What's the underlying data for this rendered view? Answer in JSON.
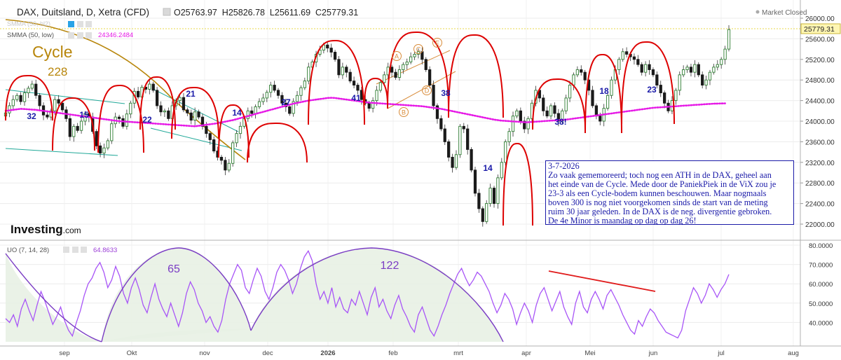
{
  "header": {
    "symbol": "DAX, Duitsland, D, Xetra (CFD)",
    "ohlc": "O25763.97  H25826.78  L25611.69  C25779.31",
    "status": "Market Closed"
  },
  "indicators": {
    "sma_hidden": "SMMA (50, hl2)",
    "sma_label": "SMMA (50, low)",
    "sma_value": "24346.2484",
    "uo_label": "UO (7, 14, 28)",
    "uo_value": "64.8633"
  },
  "watermark": {
    "brand": "Investing",
    "suffix": ".com"
  },
  "cycle": {
    "title": "Cycle",
    "days": "228"
  },
  "note_lines": [
    "3-7-2026",
    "Zo vaak gememoreerd; toch nog een ATH in de DAX, geheel aan",
    "het einde van de Cycle. Mede door de PaniekPiek in de ViX zou je",
    "23-3 als een Cycle-bodem kunnen beschouwen. Maar nogmaals",
    "boven 300 is nog niet voorgekomen sinds de start van de meting",
    "ruim 30 jaar geleden.  In de DAX is de neg. divergentie gebroken.",
    "De 4e Minor is maandag op dag op dag 26!"
  ],
  "colors": {
    "up": "#2e7d32",
    "down": "#1a1a1a",
    "cycle_arc": "#dd0000",
    "smma": "#e619e6",
    "cycle_line": "#b8860b",
    "channel": "#20a898",
    "oscillator": "#a855f7",
    "count_label": "#1a1aa8",
    "wave_label": "#d98c3a"
  },
  "chart_data": {
    "type": "candlestick",
    "x_ticks": [
      "sep",
      "Okt",
      "nov",
      "dec",
      "2026",
      "feb",
      "mrt",
      "apr",
      "Mei",
      "jun",
      "jul",
      "aug"
    ],
    "price_axis": {
      "ticks": [
        22000,
        22400,
        22800,
        23200,
        23600,
        24000,
        24400,
        24800,
        25200,
        25600,
        26000
      ],
      "ylim": [
        21850,
        26100
      ],
      "last_price": 25779.31
    },
    "closes": [
      24160,
      24300,
      24420,
      24500,
      24380,
      24550,
      24640,
      24720,
      24500,
      24300,
      24120,
      24080,
      24200,
      24420,
      24350,
      24220,
      24050,
      23700,
      23900,
      23820,
      24000,
      24150,
      24080,
      23800,
      23520,
      23380,
      23480,
      23620,
      23950,
      24080,
      24050,
      23900,
      24140,
      24350,
      24580,
      24470,
      24660,
      24620,
      24720,
      24600,
      24300,
      24180,
      24200,
      24050,
      24300,
      24400,
      24460,
      24220,
      24160,
      24020,
      24180,
      24080,
      23900,
      23760,
      23640,
      23420,
      23300,
      23240,
      23050,
      23180,
      23580,
      23760,
      23900,
      24050,
      24200,
      24150,
      24280,
      24380,
      24450,
      24560,
      24700,
      24600,
      24500,
      24350,
      24280,
      24150,
      24380,
      24500,
      24650,
      24780,
      25050,
      25150,
      25300,
      25380,
      25480,
      25420,
      25340,
      25200,
      24900,
      25050,
      24950,
      24780,
      24700,
      24600,
      24420,
      24350,
      24250,
      24400,
      24600,
      24750,
      24900,
      25050,
      24950,
      24850,
      25000,
      25100,
      25150,
      25250,
      25300,
      25350,
      25200,
      25000,
      24700,
      24300,
      24050,
      23850,
      23600,
      23300,
      23100,
      23350,
      23900,
      23850,
      23450,
      23050,
      22600,
      22300,
      22050,
      22400,
      22700,
      22400,
      22900,
      23200,
      23600,
      23800,
      24100,
      24200,
      24000,
      23850,
      24050,
      24350,
      24600,
      24450,
      24200,
      24100,
      24300,
      24150,
      24000,
      24200,
      24450,
      24700,
      24900,
      25000,
      24950,
      24800,
      24600,
      24300,
      24100,
      24000,
      24250,
      24500,
      24800,
      25000,
      25200,
      25350,
      25300,
      25250,
      25200,
      25100,
      24950,
      25100,
      25000,
      24900,
      24700,
      24550,
      24350,
      24200,
      24400,
      24600,
      24900,
      25000,
      25050,
      24950,
      25100,
      24900,
      24700,
      24800,
      24950,
      25050,
      25100,
      25200,
      25400,
      25779.31
    ],
    "smma": [
      24200,
      24210,
      24220,
      24230,
      24240,
      24235,
      24230,
      24225,
      24220,
      24210,
      24200,
      24190,
      24180,
      24170,
      24160,
      24150,
      24140,
      24130,
      24120,
      24110,
      24100,
      24090,
      24080,
      24070,
      24060,
      24050,
      24040,
      24030,
      24020,
      24010,
      24000,
      23995,
      23990,
      23985,
      23980,
      23975,
      23970,
      23965,
      23960,
      23955,
      23950,
      23945,
      23940,
      23935,
      23930,
      23925,
      23920,
      23915,
      23910,
      23905,
      23900,
      23910,
      23920,
      23930,
      23940,
      23950,
      23960,
      23975,
      23990,
      24005,
      24020,
      24040,
      24060,
      24080,
      24100,
      24120,
      24140,
      24160,
      24180,
      24200,
      24220,
      24240,
      24260,
      24280,
      24300,
      24320,
      24340,
      24355,
      24370,
      24385,
      24400,
      24410,
      24420,
      24430,
      24440,
      24450,
      24455,
      24450,
      24440,
      24430,
      24420,
      24410,
      24400,
      24390,
      24380,
      24370,
      24360,
      24355,
      24350,
      24345,
      24340,
      24335,
      24330,
      24325,
      24320,
      24315,
      24310,
      24305,
      24300,
      24295,
      24290,
      24280,
      24270,
      24260,
      24250,
      24240,
      24225,
      24210,
      24195,
      24180,
      24165,
      24150,
      24135,
      24120,
      24105,
      24090,
      24075,
      24060,
      24045,
      24030,
      24020,
      24010,
      24005,
      24000,
      23995,
      23990,
      23985,
      23980,
      23980,
      23985,
      23990,
      23995,
      24000,
      24005,
      24010,
      24015,
      24020,
      24025,
      24030,
      24040,
      24050,
      24060,
      24070,
      24080,
      24090,
      24100,
      24110,
      24120,
      24130,
      24140,
      24150,
      24160,
      24170,
      24180,
      24190,
      24200,
      24210,
      24220,
      24230,
      24240,
      24250,
      24260,
      24265,
      24270,
      24275,
      24280,
      24285,
      24290,
      24295,
      24300,
      24305,
      24310,
      24315,
      24320,
      24325,
      24330,
      24335,
      24340,
      24342,
      24344,
      24346
    ],
    "cycle_counts": [
      "32",
      "15",
      "22",
      "21",
      "14",
      "27",
      "41",
      "38",
      "14",
      "38!",
      "18",
      "23"
    ],
    "wave_labels": [
      "A",
      "B",
      "C",
      "D",
      "E"
    ],
    "oscillator": {
      "name": "UO (7, 14, 28)",
      "ticks": [
        40,
        50,
        60,
        70,
        80
      ],
      "ylim": [
        30,
        80
      ],
      "cycle_labels": [
        "65",
        "122"
      ],
      "values": [
        42,
        40,
        44,
        38,
        47,
        52,
        46,
        41,
        49,
        56,
        51,
        45,
        39,
        43,
        48,
        41,
        36,
        33,
        40,
        46,
        54,
        60,
        63,
        68,
        71,
        66,
        58,
        62,
        69,
        64,
        55,
        50,
        58,
        63,
        57,
        49,
        45,
        53,
        60,
        52,
        47,
        43,
        50,
        44,
        38,
        45,
        55,
        61,
        57,
        50,
        46,
        40,
        43,
        38,
        35,
        41,
        52,
        60,
        65,
        70,
        67,
        58,
        55,
        62,
        68,
        64,
        56,
        52,
        58,
        66,
        70,
        67,
        62,
        55,
        60,
        68,
        74,
        77,
        72,
        60,
        52,
        56,
        50,
        58,
        48,
        53,
        47,
        45,
        52,
        49,
        56,
        50,
        44,
        53,
        58,
        48,
        52,
        46,
        42,
        49,
        54,
        47,
        43,
        38,
        35,
        44,
        48,
        42,
        36,
        33,
        38,
        44,
        49,
        55,
        60,
        65,
        68,
        63,
        59,
        62,
        66,
        64,
        60,
        56,
        50,
        45,
        49,
        55,
        52,
        47,
        39,
        45,
        50,
        46,
        40,
        49,
        55,
        58,
        52,
        46,
        51,
        56,
        48,
        43,
        39,
        50,
        56,
        48,
        45,
        52,
        56,
        52,
        47,
        54,
        57,
        53,
        49,
        44,
        40,
        36,
        34,
        41,
        38,
        43,
        47,
        45,
        41,
        38,
        35,
        34,
        33,
        32,
        36,
        46,
        52,
        58,
        55,
        50,
        54,
        60,
        57,
        53,
        57,
        60,
        64.86
      ]
    }
  }
}
